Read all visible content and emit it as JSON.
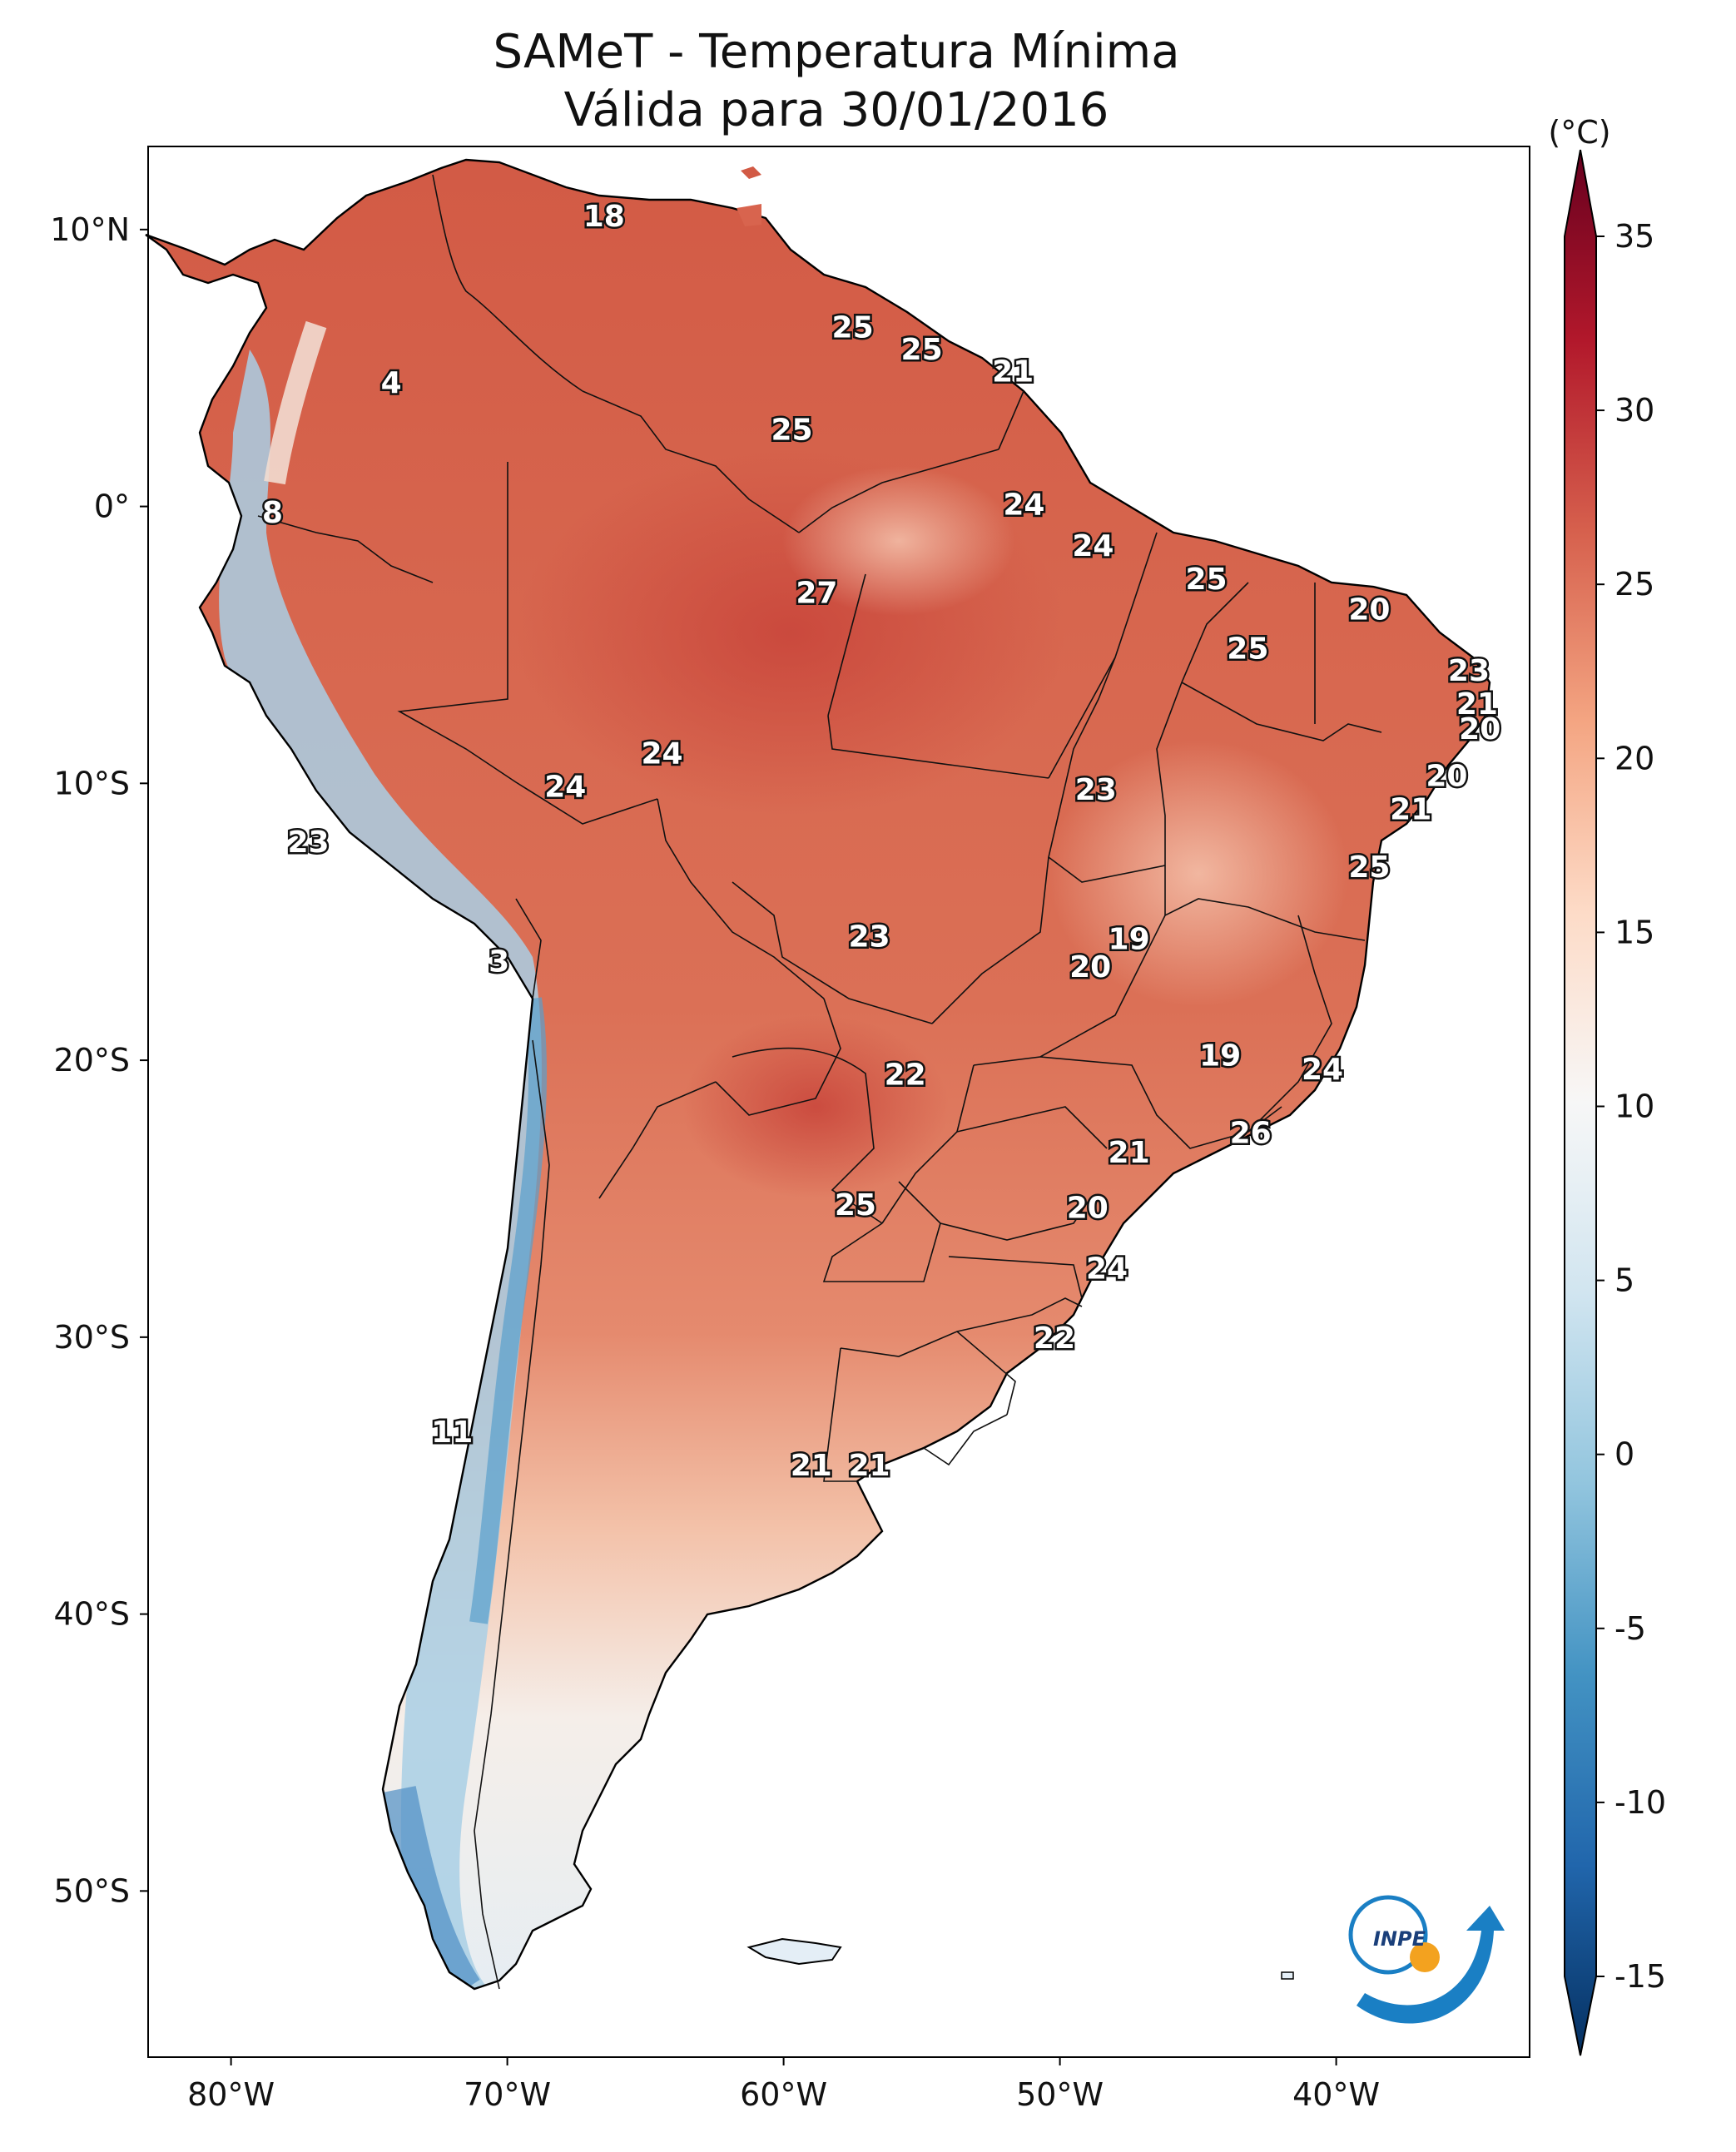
{
  "title_line1": "SAMeT - Temperatura Mínima",
  "title_line2": "Válida para 30/01/2016",
  "colorbar": {
    "unit": "(°C)",
    "min": -15,
    "max": 35,
    "ticks": [
      "35",
      "30",
      "25",
      "20",
      "15",
      "10",
      "5",
      "0",
      "-5",
      "-10",
      "-15"
    ],
    "colors": [
      "#053061",
      "#2166ac",
      "#4393c3",
      "#92c5de",
      "#d1e5f0",
      "#f7f7f7",
      "#fddbc7",
      "#f4a582",
      "#d6604d",
      "#b2182b",
      "#67001f"
    ]
  },
  "axes": {
    "lon_ticks": [
      "80°W",
      "70°W",
      "60°W",
      "50°W",
      "40°W"
    ],
    "lat_ticks": [
      "10°N",
      "0°",
      "10°S",
      "20°S",
      "30°S",
      "40°S",
      "50°S"
    ]
  },
  "logo": {
    "text": "INPE"
  },
  "chart_data": {
    "type": "heatmap",
    "title": "SAMeT - Temperatura Mínima Válida para 30/01/2016",
    "unit": "°C",
    "lon_range": [
      -83,
      -33
    ],
    "lat_range": [
      -56,
      13
    ],
    "labels": [
      {
        "value": "18",
        "lon": -66.5,
        "lat": 10.5
      },
      {
        "value": "25",
        "lon": -57.5,
        "lat": 6.5
      },
      {
        "value": "25",
        "lon": -55,
        "lat": 5.7
      },
      {
        "value": "21",
        "lon": -51.7,
        "lat": 4.9
      },
      {
        "value": "4",
        "lon": -74.2,
        "lat": 4.5
      },
      {
        "value": "25",
        "lon": -59.7,
        "lat": 2.8
      },
      {
        "value": "24",
        "lon": -51.3,
        "lat": 0.1
      },
      {
        "value": "8",
        "lon": -78.5,
        "lat": -0.2
      },
      {
        "value": "24",
        "lon": -48.8,
        "lat": -1.4
      },
      {
        "value": "25",
        "lon": -44.7,
        "lat": -2.6
      },
      {
        "value": "27",
        "lon": -58.8,
        "lat": -3.1
      },
      {
        "value": "20",
        "lon": -38.8,
        "lat": -3.7
      },
      {
        "value": "25",
        "lon": -43.2,
        "lat": -5.1
      },
      {
        "value": "23",
        "lon": -35.2,
        "lat": -5.9
      },
      {
        "value": "21",
        "lon": -34.9,
        "lat": -7.1
      },
      {
        "value": "20",
        "lon": -34.8,
        "lat": -8.0
      },
      {
        "value": "24",
        "lon": -64.4,
        "lat": -8.9
      },
      {
        "value": "20",
        "lon": -36.0,
        "lat": -9.7
      },
      {
        "value": "24",
        "lon": -67.9,
        "lat": -10.1
      },
      {
        "value": "23",
        "lon": -48.7,
        "lat": -10.2
      },
      {
        "value": "21",
        "lon": -37.3,
        "lat": -10.9
      },
      {
        "value": "23",
        "lon": -77.2,
        "lat": -12.1
      },
      {
        "value": "25",
        "lon": -38.8,
        "lat": -13.0
      },
      {
        "value": "23",
        "lon": -56.9,
        "lat": -15.5
      },
      {
        "value": "19",
        "lon": -47.5,
        "lat": -15.6
      },
      {
        "value": "3",
        "lon": -70.3,
        "lat": -16.4
      },
      {
        "value": "20",
        "lon": -48.9,
        "lat": -16.6
      },
      {
        "value": "19",
        "lon": -44.2,
        "lat": -19.8
      },
      {
        "value": "22",
        "lon": -55.6,
        "lat": -20.5
      },
      {
        "value": "24",
        "lon": -40.5,
        "lat": -20.3
      },
      {
        "value": "26",
        "lon": -43.1,
        "lat": -22.6
      },
      {
        "value": "21",
        "lon": -47.5,
        "lat": -23.3
      },
      {
        "value": "25",
        "lon": -57.4,
        "lat": -25.2
      },
      {
        "value": "20",
        "lon": -49.0,
        "lat": -25.3
      },
      {
        "value": "24",
        "lon": -48.3,
        "lat": -27.5
      },
      {
        "value": "22",
        "lon": -50.2,
        "lat": -30.0
      },
      {
        "value": "11",
        "lon": -72.0,
        "lat": -33.4
      },
      {
        "value": "21",
        "lon": -59.0,
        "lat": -34.6
      },
      {
        "value": "21",
        "lon": -56.9,
        "lat": -34.6
      }
    ]
  }
}
